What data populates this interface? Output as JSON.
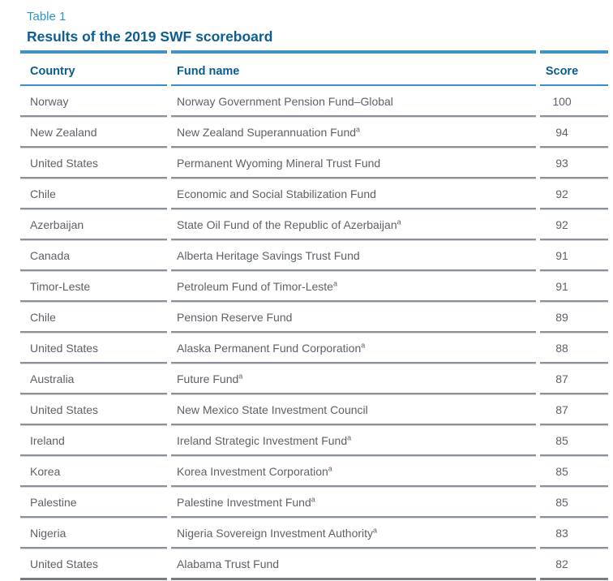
{
  "page": {
    "table_label": "Table 1",
    "title": "Results of the 2019 SWF scoreboard"
  },
  "table": {
    "headers": {
      "country": "Country",
      "fund": "Fund name",
      "score": "Score"
    },
    "footnote_marker": "a",
    "rows": [
      {
        "country": "Norway",
        "fund": "Norway Government Pension Fund–Global",
        "note": "",
        "score": "100"
      },
      {
        "country": "New Zealand",
        "fund": "New Zealand Superannuation Fund",
        "note": "a",
        "score": "94"
      },
      {
        "country": "United States",
        "fund": "Permanent Wyoming Mineral Trust Fund",
        "note": "",
        "score": "93"
      },
      {
        "country": "Chile",
        "fund": "Economic and Social Stabilization Fund",
        "note": "",
        "score": "92"
      },
      {
        "country": "Azerbaijan",
        "fund": "State Oil Fund of the Republic of Azerbaijan",
        "note": "a",
        "score": "92"
      },
      {
        "country": "Canada",
        "fund": "Alberta Heritage Savings Trust Fund",
        "note": "",
        "score": "91"
      },
      {
        "country": "Timor-Leste",
        "fund": "Petroleum Fund of Timor-Leste",
        "note": "a",
        "score": "91"
      },
      {
        "country": "Chile",
        "fund": "Pension Reserve Fund",
        "note": "",
        "score": "89"
      },
      {
        "country": "United States",
        "fund": "Alaska Permanent Fund Corporation",
        "note": "a",
        "score": "88"
      },
      {
        "country": "Australia",
        "fund": "Future Fund",
        "note": "a",
        "score": "87"
      },
      {
        "country": "United States",
        "fund": "New Mexico State Investment Council",
        "note": "",
        "score": "87"
      },
      {
        "country": "Ireland",
        "fund": "Ireland Strategic Investment Fund",
        "note": "a",
        "score": "85"
      },
      {
        "country": "Korea",
        "fund": "Korea Investment Corporation",
        "note": "a",
        "score": "85"
      },
      {
        "country": "Palestine",
        "fund": "Palestine Investment Fund",
        "note": "a",
        "score": "85"
      },
      {
        "country": "Nigeria",
        "fund": "Nigeria Sovereign Investment Authority",
        "note": "a",
        "score": "83"
      },
      {
        "country": "United States",
        "fund": "Alabama Trust Fund",
        "note": "",
        "score": "82"
      }
    ]
  },
  "colors": {
    "accent_light_blue": "#2a96ce",
    "accent_dark_blue": "#0d5e90",
    "rule_blue": "#4492c3",
    "rule_gray": "#8b9198",
    "body_text_gray": "#5d6268"
  }
}
